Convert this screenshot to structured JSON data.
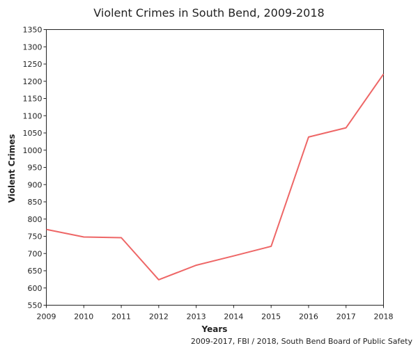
{
  "chart_data": {
    "type": "line",
    "title": "Violent Crimes in South Bend, 2009-2018",
    "xlabel": "Years",
    "ylabel": "Violent Crimes",
    "x": [
      "2009",
      "2010",
      "2011",
      "2012",
      "2013",
      "2014",
      "2015",
      "2016",
      "2017",
      "2018"
    ],
    "series": [
      {
        "values": [
          770,
          748,
          746,
          624,
          666,
          693,
          721,
          1038,
          1065,
          1221
        ]
      }
    ],
    "ylim": [
      550,
      1350
    ],
    "yticks": [
      550,
      600,
      650,
      700,
      750,
      800,
      850,
      900,
      950,
      1000,
      1050,
      1100,
      1150,
      1200,
      1250,
      1300,
      1350
    ],
    "grid": false,
    "legend": "none",
    "line_color": "#ee6666",
    "source": "2009-2017, FBI / 2018, South Bend Board of Public Safety"
  }
}
